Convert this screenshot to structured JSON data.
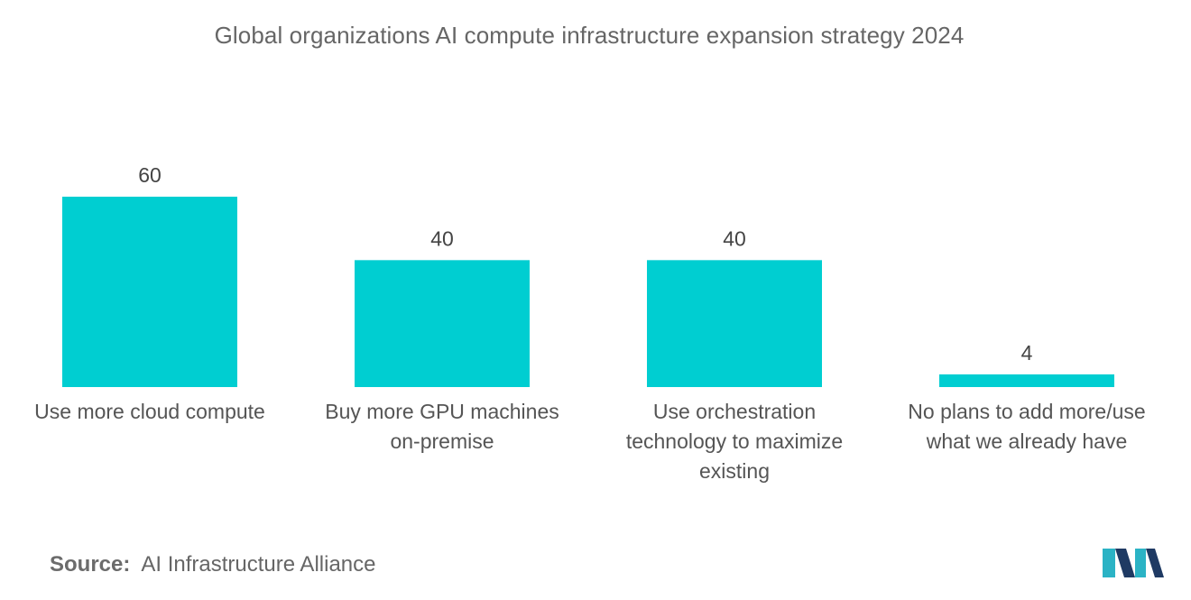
{
  "chart_data": {
    "type": "bar",
    "title": "Global organizations AI compute infrastructure expansion strategy 2024",
    "categories": [
      [
        "Use more cloud compute"
      ],
      [
        "Buy more GPU machines",
        "on-premise"
      ],
      [
        "Use orchestration",
        "technology to maximize",
        "existing"
      ],
      [
        "No plans to add more/use",
        "what we already have"
      ]
    ],
    "values": [
      60,
      40,
      40,
      4
    ],
    "xlabel": "",
    "ylabel": "",
    "ylim": [
      0,
      60
    ],
    "grid": false,
    "legend": "none",
    "bar_color": "#00ced1"
  },
  "source": {
    "label": "Source:",
    "text": "AI Infrastructure Alliance"
  },
  "logo": {
    "icon": "mordor-intelligence-logo-icon",
    "colors": [
      "#2bb3c5",
      "#1f3a63"
    ]
  }
}
